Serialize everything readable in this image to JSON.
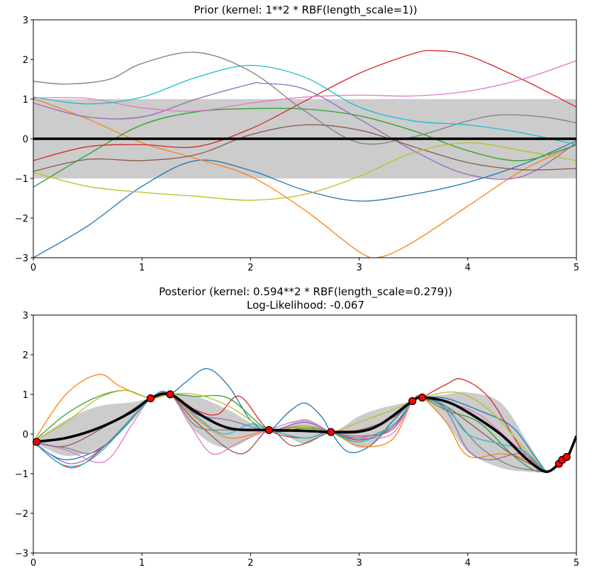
{
  "chart_data": [
    {
      "type": "line",
      "title": "Prior (kernel:  1**2 * RBF(length_scale=1))",
      "xlim": [
        0,
        5
      ],
      "ylim": [
        -3,
        3
      ],
      "xticks": [
        "0",
        "1",
        "2",
        "3",
        "4",
        "5"
      ],
      "yticks": [
        "3",
        "2",
        "1",
        "0",
        "−1",
        "−2",
        "−3"
      ],
      "mean": {
        "x": [
          0,
          5
        ],
        "y": [
          0,
          0
        ]
      },
      "band": {
        "x": [
          0,
          5
        ],
        "lower": [
          -1,
          -1
        ],
        "upper": [
          1,
          1
        ]
      },
      "series": [
        {
          "color": "#1f77b4",
          "x": [
            0,
            0.5,
            1,
            1.5,
            2,
            2.5,
            3,
            3.5,
            4,
            4.5,
            5
          ],
          "y": [
            -3.0,
            -2.2,
            -1.2,
            -0.55,
            -0.8,
            -1.3,
            -1.57,
            -1.4,
            -1.1,
            -0.65,
            -0.05
          ]
        },
        {
          "color": "#ff7f0e",
          "x": [
            0,
            0.5,
            1,
            1.5,
            2,
            2.5,
            3,
            3.2,
            3.5,
            4,
            4.5,
            5
          ],
          "y": [
            1.02,
            0.5,
            -0.1,
            -0.5,
            -0.95,
            -1.8,
            -2.85,
            -2.98,
            -2.6,
            -1.7,
            -0.8,
            -0.15
          ]
        },
        {
          "color": "#2ca02c",
          "x": [
            0,
            0.5,
            1,
            1.5,
            2,
            2.5,
            3,
            3.5,
            4,
            4.5,
            5
          ],
          "y": [
            -1.22,
            -0.4,
            0.35,
            0.68,
            0.76,
            0.75,
            0.58,
            0.2,
            -0.3,
            -0.55,
            -0.15
          ]
        },
        {
          "color": "#d62728",
          "x": [
            0,
            0.5,
            1,
            1.5,
            2,
            2.5,
            3,
            3.5,
            3.7,
            4,
            4.5,
            5
          ],
          "y": [
            -0.55,
            -0.2,
            -0.15,
            -0.2,
            0.25,
            0.95,
            1.65,
            2.15,
            2.22,
            2.1,
            1.5,
            0.8
          ]
        },
        {
          "color": "#9467bd",
          "x": [
            0,
            0.5,
            1,
            1.5,
            2,
            2.1,
            2.5,
            3,
            3.5,
            4,
            4.5,
            5
          ],
          "y": [
            0.9,
            0.55,
            0.55,
            1.0,
            1.38,
            1.4,
            1.25,
            0.5,
            -0.3,
            -0.9,
            -0.95,
            -0.1
          ]
        },
        {
          "color": "#8c564b",
          "x": [
            0,
            0.5,
            1,
            1.5,
            2,
            2.5,
            3,
            3.5,
            4,
            4.5,
            5
          ],
          "y": [
            -0.82,
            -0.52,
            -0.55,
            -0.4,
            0.1,
            0.35,
            0.22,
            -0.2,
            -0.6,
            -0.78,
            -0.75
          ]
        },
        {
          "color": "#e377c2",
          "x": [
            0,
            0.5,
            1,
            1.5,
            2,
            2.5,
            3,
            3.5,
            4,
            4.5,
            5
          ],
          "y": [
            1.03,
            1.02,
            0.78,
            0.7,
            0.9,
            1.05,
            1.1,
            1.08,
            1.2,
            1.5,
            1.97
          ]
        },
        {
          "color": "#7f7f7f",
          "x": [
            0,
            0.3,
            0.7,
            1,
            1.5,
            2,
            2.5,
            3,
            3.5,
            4,
            4.3,
            4.7,
            5
          ],
          "y": [
            1.45,
            1.38,
            1.5,
            1.9,
            2.18,
            1.7,
            0.7,
            -0.1,
            0.05,
            0.45,
            0.6,
            0.55,
            0.4
          ]
        },
        {
          "color": "#bcbd22",
          "x": [
            0,
            0.5,
            1,
            1.5,
            2,
            2.5,
            3,
            3.5,
            4,
            4.5,
            5
          ],
          "y": [
            -0.85,
            -1.2,
            -1.35,
            -1.45,
            -1.55,
            -1.4,
            -0.95,
            -0.35,
            -0.1,
            -0.3,
            -0.55
          ]
        },
        {
          "color": "#17becf",
          "x": [
            0,
            0.5,
            1,
            1.5,
            2,
            2.5,
            3,
            3.5,
            4,
            4.5,
            5
          ],
          "y": [
            1.05,
            0.88,
            1.05,
            1.55,
            1.85,
            1.55,
            0.8,
            0.45,
            0.35,
            0.15,
            -0.15
          ]
        }
      ]
    },
    {
      "type": "line",
      "title": "Posterior (kernel: 0.594**2 * RBF(length_scale=0.279))",
      "subtitle": "Log-Likelihood: -0.067",
      "xlim": [
        0,
        5
      ],
      "ylim": [
        -3,
        3
      ],
      "xticks": [
        "0",
        "1",
        "2",
        "3",
        "4",
        "5"
      ],
      "yticks": [
        "3",
        "2",
        "1",
        "0",
        "−1",
        "−2",
        "−3"
      ],
      "mean": {
        "x": [
          0,
          0.3,
          0.6,
          0.9,
          1.08,
          1.26,
          1.5,
          1.8,
          2.17,
          2.5,
          2.74,
          3.0,
          3.2,
          3.49,
          3.58,
          3.8,
          4.0,
          4.3,
          4.55,
          4.72,
          4.84,
          4.88,
          4.92,
          5.0
        ],
        "y": [
          -0.2,
          -0.1,
          0.15,
          0.55,
          0.9,
          1.0,
          0.55,
          0.15,
          0.1,
          0.08,
          0.05,
          0.06,
          0.25,
          0.83,
          0.92,
          0.82,
          0.55,
          0.0,
          -0.65,
          -0.95,
          -0.75,
          -0.65,
          -0.58,
          -0.05
        ]
      },
      "band": {
        "x": [
          0,
          0.3,
          0.6,
          0.9,
          1.08,
          1.26,
          1.5,
          1.8,
          2.17,
          2.5,
          2.74,
          3.0,
          3.2,
          3.49,
          3.58,
          3.8,
          4.0,
          4.3,
          4.55,
          4.72,
          4.84,
          4.92
        ],
        "lower": [
          -0.2,
          -0.55,
          -0.35,
          0.3,
          0.9,
          1.0,
          0.05,
          -0.35,
          0.1,
          -0.25,
          0.05,
          -0.35,
          -0.1,
          0.83,
          0.92,
          0.3,
          -0.45,
          -0.85,
          -0.95,
          -0.95,
          -0.75,
          -0.58
        ],
        "upper": [
          -0.2,
          0.35,
          0.7,
          0.8,
          0.9,
          1.0,
          0.95,
          0.6,
          0.1,
          0.38,
          0.05,
          0.45,
          0.65,
          0.83,
          0.92,
          1.0,
          1.05,
          0.8,
          -0.2,
          -0.9,
          -0.75,
          -0.58
        ]
      },
      "observations": {
        "x": [
          0.03,
          1.08,
          1.26,
          2.17,
          2.74,
          3.49,
          3.58,
          4.84,
          4.87,
          4.91
        ],
        "y": [
          -0.2,
          0.9,
          1.0,
          0.1,
          0.05,
          0.83,
          0.92,
          -0.75,
          -0.65,
          -0.58
        ]
      },
      "series": [
        {
          "color": "#1f77b4",
          "x": [
            0,
            0.3,
            0.7,
            1.08,
            1.26,
            1.4,
            1.6,
            1.8,
            2.0,
            2.17,
            2.35,
            2.5,
            2.65,
            2.74,
            2.9,
            3.1,
            3.3,
            3.49,
            3.58,
            3.8,
            4.1,
            4.4,
            4.6,
            4.72
          ],
          "y": [
            -0.2,
            -0.65,
            -0.2,
            0.9,
            1.0,
            1.3,
            1.65,
            1.2,
            0.35,
            0.1,
            0.55,
            0.78,
            0.45,
            0.05,
            -0.45,
            -0.3,
            0.3,
            0.83,
            0.92,
            0.9,
            0.6,
            0.2,
            -0.5,
            -0.95
          ]
        },
        {
          "color": "#ff7f0e",
          "x": [
            0,
            0.3,
            0.6,
            0.8,
            1.08,
            1.26,
            1.5,
            1.8,
            2.17,
            2.5,
            2.74,
            3.0,
            3.3,
            3.49,
            3.58,
            3.8,
            4.0,
            4.3,
            4.5,
            4.72
          ],
          "y": [
            -0.2,
            1.0,
            1.5,
            1.2,
            0.9,
            1.0,
            0.4,
            -0.1,
            0.1,
            0.15,
            0.05,
            -0.3,
            -0.15,
            0.83,
            0.92,
            0.3,
            -0.55,
            -0.5,
            -0.6,
            -0.95
          ]
        },
        {
          "color": "#2ca02c",
          "x": [
            0,
            0.3,
            0.6,
            0.85,
            1.08,
            1.26,
            1.5,
            1.8,
            2.17,
            2.5,
            2.74,
            3.0,
            3.3,
            3.49,
            3.58,
            3.8,
            4.1,
            4.4,
            4.6,
            4.72
          ],
          "y": [
            -0.2,
            0.5,
            0.95,
            1.1,
            0.9,
            1.0,
            0.95,
            0.9,
            0.1,
            0.15,
            0.05,
            -0.2,
            0.2,
            0.83,
            0.92,
            0.6,
            0.3,
            -0.5,
            -0.9,
            -0.95
          ]
        },
        {
          "color": "#d62728",
          "x": [
            0,
            0.35,
            0.7,
            1.08,
            1.26,
            1.5,
            1.7,
            1.9,
            2.17,
            2.5,
            2.74,
            3.0,
            3.3,
            3.49,
            3.58,
            3.8,
            3.95,
            4.2,
            4.5,
            4.72
          ],
          "y": [
            -0.2,
            -0.85,
            -0.2,
            0.9,
            1.0,
            0.6,
            0.5,
            0.95,
            0.1,
            -0.1,
            0.05,
            -0.15,
            0.15,
            0.83,
            0.92,
            1.25,
            1.38,
            0.9,
            -0.4,
            -0.95
          ]
        },
        {
          "color": "#9467bd",
          "x": [
            0,
            0.35,
            0.7,
            1.08,
            1.26,
            1.5,
            1.8,
            2.17,
            2.5,
            2.74,
            3.0,
            3.3,
            3.49,
            3.58,
            3.8,
            4.0,
            4.2,
            4.5,
            4.72
          ],
          "y": [
            -0.2,
            -0.75,
            -0.2,
            0.9,
            1.0,
            0.5,
            0.35,
            0.1,
            0.3,
            0.05,
            -0.05,
            0.1,
            0.83,
            0.92,
            0.6,
            -0.4,
            -0.65,
            -0.5,
            -0.95
          ]
        },
        {
          "color": "#8c564b",
          "x": [
            0,
            0.3,
            0.7,
            1.08,
            1.26,
            1.5,
            1.9,
            2.17,
            2.4,
            2.74,
            3.0,
            3.3,
            3.49,
            3.58,
            3.8,
            4.1,
            4.4,
            4.72
          ],
          "y": [
            -0.2,
            -0.3,
            0.25,
            0.9,
            1.0,
            0.3,
            -0.5,
            0.1,
            -0.3,
            0.05,
            0.1,
            0.4,
            0.83,
            0.92,
            0.7,
            0.1,
            -0.5,
            -0.95
          ]
        },
        {
          "color": "#e377c2",
          "x": [
            0,
            0.3,
            0.65,
            0.9,
            1.08,
            1.26,
            1.45,
            1.65,
            1.9,
            2.17,
            2.5,
            2.74,
            3.0,
            3.3,
            3.49,
            3.58,
            3.8,
            4.1,
            4.4,
            4.72
          ],
          "y": [
            -0.2,
            -0.4,
            -0.7,
            0.2,
            0.9,
            1.0,
            0.2,
            -0.5,
            -0.2,
            0.1,
            0.35,
            0.05,
            -0.1,
            0.0,
            0.83,
            0.92,
            0.8,
            0.5,
            -0.2,
            -0.95
          ]
        },
        {
          "color": "#7f7f7f",
          "x": [
            0,
            0.3,
            0.6,
            1.08,
            1.26,
            1.5,
            1.8,
            2.17,
            2.5,
            2.74,
            3.0,
            3.3,
            3.49,
            3.58,
            3.8,
            4.1,
            4.4,
            4.72
          ],
          "y": [
            -0.2,
            -0.35,
            -0.4,
            0.9,
            1.0,
            0.2,
            0.1,
            0.1,
            0.2,
            0.05,
            -0.1,
            0.2,
            0.83,
            0.92,
            0.65,
            -0.3,
            -0.8,
            -0.95
          ]
        },
        {
          "color": "#bcbd22",
          "x": [
            0,
            0.3,
            0.6,
            0.85,
            1.08,
            1.26,
            1.5,
            1.8,
            2.17,
            2.5,
            2.74,
            3.0,
            3.3,
            3.49,
            3.58,
            3.9,
            4.2,
            4.5,
            4.72
          ],
          "y": [
            -0.2,
            0.3,
            0.9,
            1.1,
            0.9,
            1.0,
            1.0,
            0.7,
            0.1,
            0.2,
            0.05,
            0.3,
            0.6,
            0.83,
            0.92,
            1.05,
            0.6,
            -0.3,
            -0.95
          ]
        },
        {
          "color": "#17becf",
          "x": [
            0,
            0.3,
            0.6,
            1.08,
            1.26,
            1.5,
            1.75,
            2.0,
            2.17,
            2.5,
            2.74,
            3.0,
            3.3,
            3.49,
            3.58,
            3.8,
            4.0,
            4.3,
            4.5,
            4.72
          ],
          "y": [
            -0.2,
            -0.8,
            -0.5,
            0.9,
            1.0,
            0.45,
            0.0,
            0.25,
            0.1,
            -0.1,
            0.05,
            -0.2,
            0.2,
            0.83,
            0.92,
            0.7,
            0.0,
            -0.25,
            -0.4,
            -0.95
          ]
        }
      ]
    }
  ]
}
